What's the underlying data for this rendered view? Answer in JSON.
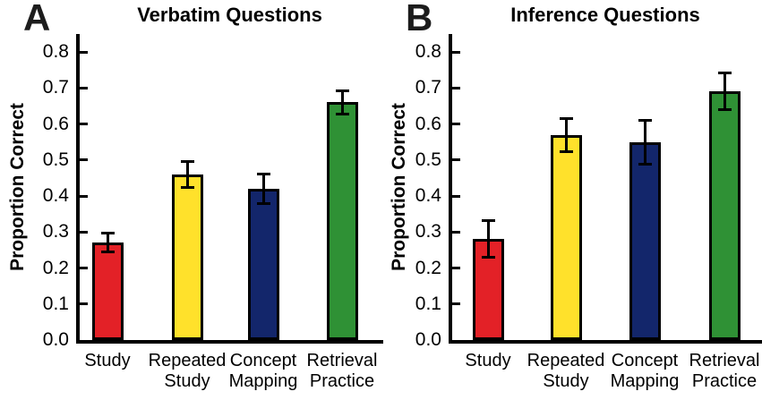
{
  "figure": {
    "background": "#ffffff",
    "text_color": "#000000",
    "axis_color": "#000000",
    "panels": [
      {
        "letter": "A",
        "title": "Verbatim Questions",
        "ylabel": "Proportion Correct"
      },
      {
        "letter": "B",
        "title": "Inference Questions",
        "ylabel": "Proportion Correct"
      }
    ]
  },
  "chart_data": [
    {
      "type": "bar",
      "panel_label": "A",
      "title": "Verbatim Questions",
      "ylabel": "Proportion Correct",
      "xlabel": "",
      "categories": [
        "Study",
        "Repeated Study",
        "Concept Mapping",
        "Retrieval Practice"
      ],
      "values": [
        0.27,
        0.46,
        0.42,
        0.66
      ],
      "error_bars": [
        0.03,
        0.04,
        0.045,
        0.035
      ],
      "bar_colors": [
        "#e32127",
        "#ffe12b",
        "#13266b",
        "#2f9135"
      ],
      "ylim": [
        0,
        0.85
      ],
      "ytick_labels": [
        "0.0",
        "0.1",
        "0.2",
        "0.3",
        "0.4",
        "0.5",
        "0.6",
        "0.7",
        "0.8"
      ],
      "grid": false,
      "legend": false
    },
    {
      "type": "bar",
      "panel_label": "B",
      "title": "Inference Questions",
      "ylabel": "Proportion Correct",
      "xlabel": "",
      "categories": [
        "Study",
        "Repeated Study",
        "Concept Mapping",
        "Retrieval Practice"
      ],
      "values": [
        0.28,
        0.57,
        0.55,
        0.69
      ],
      "error_bars": [
        0.055,
        0.05,
        0.065,
        0.055
      ],
      "bar_colors": [
        "#e32127",
        "#ffe12b",
        "#13266b",
        "#2f9135"
      ],
      "ylim": [
        0,
        0.85
      ],
      "ytick_labels": [
        "0.0",
        "0.1",
        "0.2",
        "0.3",
        "0.4",
        "0.5",
        "0.6",
        "0.7",
        "0.8"
      ],
      "grid": false,
      "legend": false
    }
  ]
}
